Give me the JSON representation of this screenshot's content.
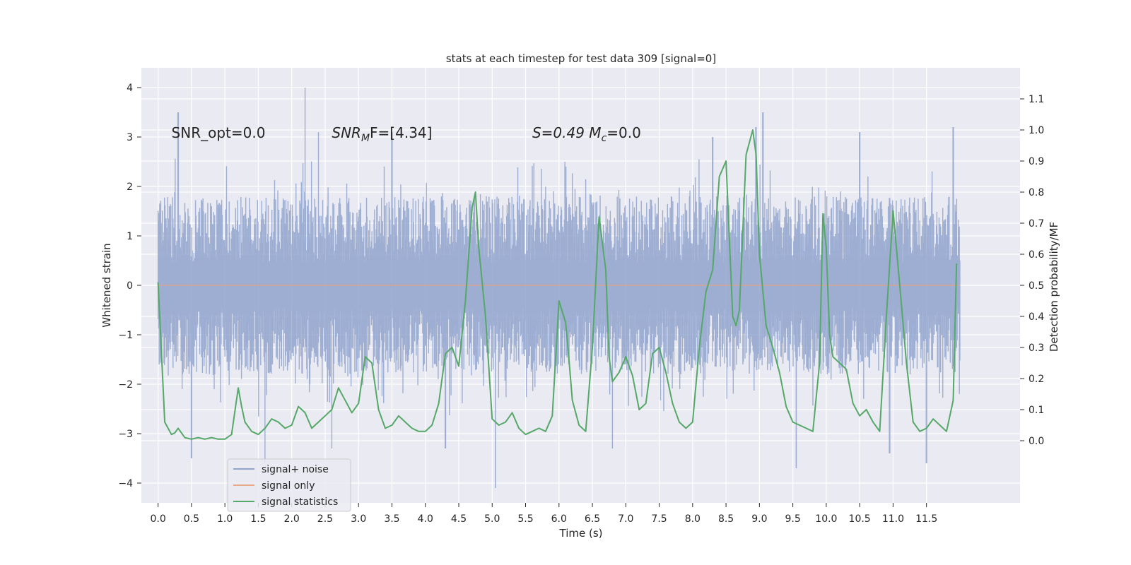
{
  "chart_data": {
    "type": "line",
    "title": "stats at each timestep for test data 309 [signal=0]",
    "xlabel": "Time (s)",
    "ylabel": "Whitened strain",
    "ylabel_right": "Detection probability/MF",
    "xlim": [
      -0.25,
      12.9
    ],
    "ylim": [
      -4.4,
      4.4
    ],
    "ylim_right": [
      -0.2,
      1.2
    ],
    "x_ticks": [
      0.0,
      0.5,
      1.0,
      1.5,
      2.0,
      2.5,
      3.0,
      3.5,
      4.0,
      4.5,
      5.0,
      5.5,
      6.0,
      6.5,
      7.0,
      7.5,
      8.0,
      8.5,
      9.0,
      9.5,
      10.0,
      10.5,
      11.0,
      11.5
    ],
    "x_tick_labels": [
      "0.0",
      "0.5",
      "1.0",
      "1.5",
      "2.0",
      "2.5",
      "3.0",
      "3.5",
      "4.0",
      "4.5",
      "5.0",
      "5.5",
      "6.0",
      "6.5",
      "7.0",
      "7.5",
      "8.0",
      "8.5",
      "9.0",
      "9.5",
      "10.0",
      "10.5",
      "11.0",
      "11.5"
    ],
    "y_ticks": [
      -4,
      -3,
      -2,
      -1,
      0,
      1,
      2,
      3,
      4
    ],
    "y_tick_labels": [
      "−4",
      "−3",
      "−2",
      "−1",
      "0",
      "1",
      "2",
      "3",
      "4"
    ],
    "y_ticks_right": [
      0.0,
      0.1,
      0.2,
      0.3,
      0.4,
      0.5,
      0.6,
      0.7,
      0.8,
      0.9,
      1.0,
      1.1
    ],
    "y_tick_labels_right": [
      "0.0",
      "0.1",
      "0.2",
      "0.3",
      "0.4",
      "0.5",
      "0.6",
      "0.7",
      "0.8",
      "0.9",
      "1.0",
      "1.1"
    ],
    "grid": true,
    "legend_position": "lower-left",
    "annotations": [
      {
        "id": "snr-opt",
        "text": "SNR_opt=0.0",
        "x": 0.2,
        "y": 3.1
      },
      {
        "id": "snr-mf",
        "text_main": "SNR",
        "text_sub": "M",
        "text_rest": "F=[4.34]",
        "x": 2.6,
        "y": 3.1
      },
      {
        "id": "s-mc",
        "text_main": "S=0.49   M",
        "text_sub": "c",
        "text_rest": "=0.0",
        "x": 5.6,
        "y": 3.1
      }
    ],
    "series": [
      {
        "name": "signal+ noise",
        "color": "#8fa3cc",
        "axis": "left",
        "kind": "noise",
        "x_range": [
          0.0,
          12.0
        ],
        "typical_band": [
          -1.8,
          1.8
        ],
        "peaks_high": [
          [
            0.3,
            3.5
          ],
          [
            2.2,
            4.0
          ],
          [
            2.4,
            3.1
          ],
          [
            3.5,
            3.1
          ],
          [
            8.3,
            3.0
          ],
          [
            8.95,
            3.2
          ],
          [
            9.05,
            3.5
          ],
          [
            10.5,
            3.1
          ],
          [
            11.9,
            3.2
          ]
        ],
        "peaks_low": [
          [
            0.5,
            -3.5
          ],
          [
            1.6,
            -3.6
          ],
          [
            2.6,
            -3.3
          ],
          [
            4.3,
            -3.3
          ],
          [
            5.05,
            -4.1
          ],
          [
            6.8,
            -3.3
          ],
          [
            9.55,
            -3.7
          ],
          [
            10.95,
            -3.4
          ],
          [
            11.5,
            -3.6
          ]
        ]
      },
      {
        "name": "signal only",
        "color": "#dd8452",
        "axis": "left",
        "kind": "flat",
        "x": [
          0.0,
          12.0
        ],
        "values": [
          0.0,
          0.0
        ]
      },
      {
        "name": "signal statistics",
        "color": "#55a868",
        "axis": "right",
        "kind": "line",
        "x": [
          0.0,
          0.1,
          0.2,
          0.25,
          0.3,
          0.4,
          0.5,
          0.6,
          0.7,
          0.8,
          0.9,
          1.0,
          1.1,
          1.2,
          1.25,
          1.3,
          1.4,
          1.5,
          1.6,
          1.7,
          1.8,
          1.9,
          2.0,
          2.1,
          2.2,
          2.3,
          2.4,
          2.5,
          2.6,
          2.7,
          2.8,
          2.9,
          3.0,
          3.1,
          3.2,
          3.3,
          3.4,
          3.5,
          3.6,
          3.7,
          3.8,
          3.9,
          4.0,
          4.1,
          4.2,
          4.3,
          4.4,
          4.5,
          4.6,
          4.7,
          4.75,
          4.8,
          4.9,
          5.0,
          5.1,
          5.2,
          5.3,
          5.4,
          5.5,
          5.6,
          5.7,
          5.8,
          5.9,
          6.0,
          6.1,
          6.15,
          6.2,
          6.3,
          6.4,
          6.5,
          6.6,
          6.7,
          6.75,
          6.8,
          6.9,
          7.0,
          7.1,
          7.2,
          7.3,
          7.4,
          7.5,
          7.6,
          7.7,
          7.8,
          7.9,
          8.0,
          8.1,
          8.2,
          8.3,
          8.4,
          8.5,
          8.6,
          8.65,
          8.7,
          8.8,
          8.9,
          8.95,
          9.0,
          9.1,
          9.2,
          9.3,
          9.4,
          9.5,
          9.6,
          9.7,
          9.8,
          9.9,
          9.95,
          10.0,
          10.05,
          10.1,
          10.2,
          10.3,
          10.4,
          10.5,
          10.6,
          10.7,
          10.8,
          10.9,
          11.0,
          11.1,
          11.2,
          11.3,
          11.4,
          11.5,
          11.6,
          11.7,
          11.8,
          11.9,
          11.95
        ],
        "values": [
          0.51,
          0.06,
          0.02,
          0.025,
          0.04,
          0.01,
          0.005,
          0.01,
          0.005,
          0.01,
          0.005,
          0.005,
          0.02,
          0.17,
          0.11,
          0.06,
          0.03,
          0.02,
          0.04,
          0.07,
          0.06,
          0.04,
          0.05,
          0.11,
          0.09,
          0.04,
          0.06,
          0.08,
          0.1,
          0.17,
          0.13,
          0.09,
          0.12,
          0.27,
          0.25,
          0.1,
          0.04,
          0.05,
          0.08,
          0.06,
          0.04,
          0.03,
          0.03,
          0.05,
          0.12,
          0.28,
          0.3,
          0.24,
          0.45,
          0.75,
          0.8,
          0.62,
          0.4,
          0.07,
          0.05,
          0.06,
          0.09,
          0.04,
          0.02,
          0.03,
          0.04,
          0.03,
          0.08,
          0.45,
          0.38,
          0.26,
          0.13,
          0.05,
          0.03,
          0.3,
          0.72,
          0.55,
          0.27,
          0.19,
          0.22,
          0.27,
          0.21,
          0.1,
          0.12,
          0.28,
          0.3,
          0.22,
          0.12,
          0.06,
          0.04,
          0.06,
          0.3,
          0.48,
          0.55,
          0.85,
          0.9,
          0.4,
          0.37,
          0.42,
          0.92,
          1.0,
          0.92,
          0.6,
          0.37,
          0.3,
          0.22,
          0.11,
          0.06,
          0.05,
          0.04,
          0.03,
          0.25,
          0.73,
          0.62,
          0.34,
          0.27,
          0.25,
          0.23,
          0.12,
          0.08,
          0.1,
          0.06,
          0.03,
          0.4,
          0.74,
          0.5,
          0.25,
          0.06,
          0.03,
          0.04,
          0.07,
          0.05,
          0.03,
          0.13,
          0.57
        ]
      }
    ]
  }
}
